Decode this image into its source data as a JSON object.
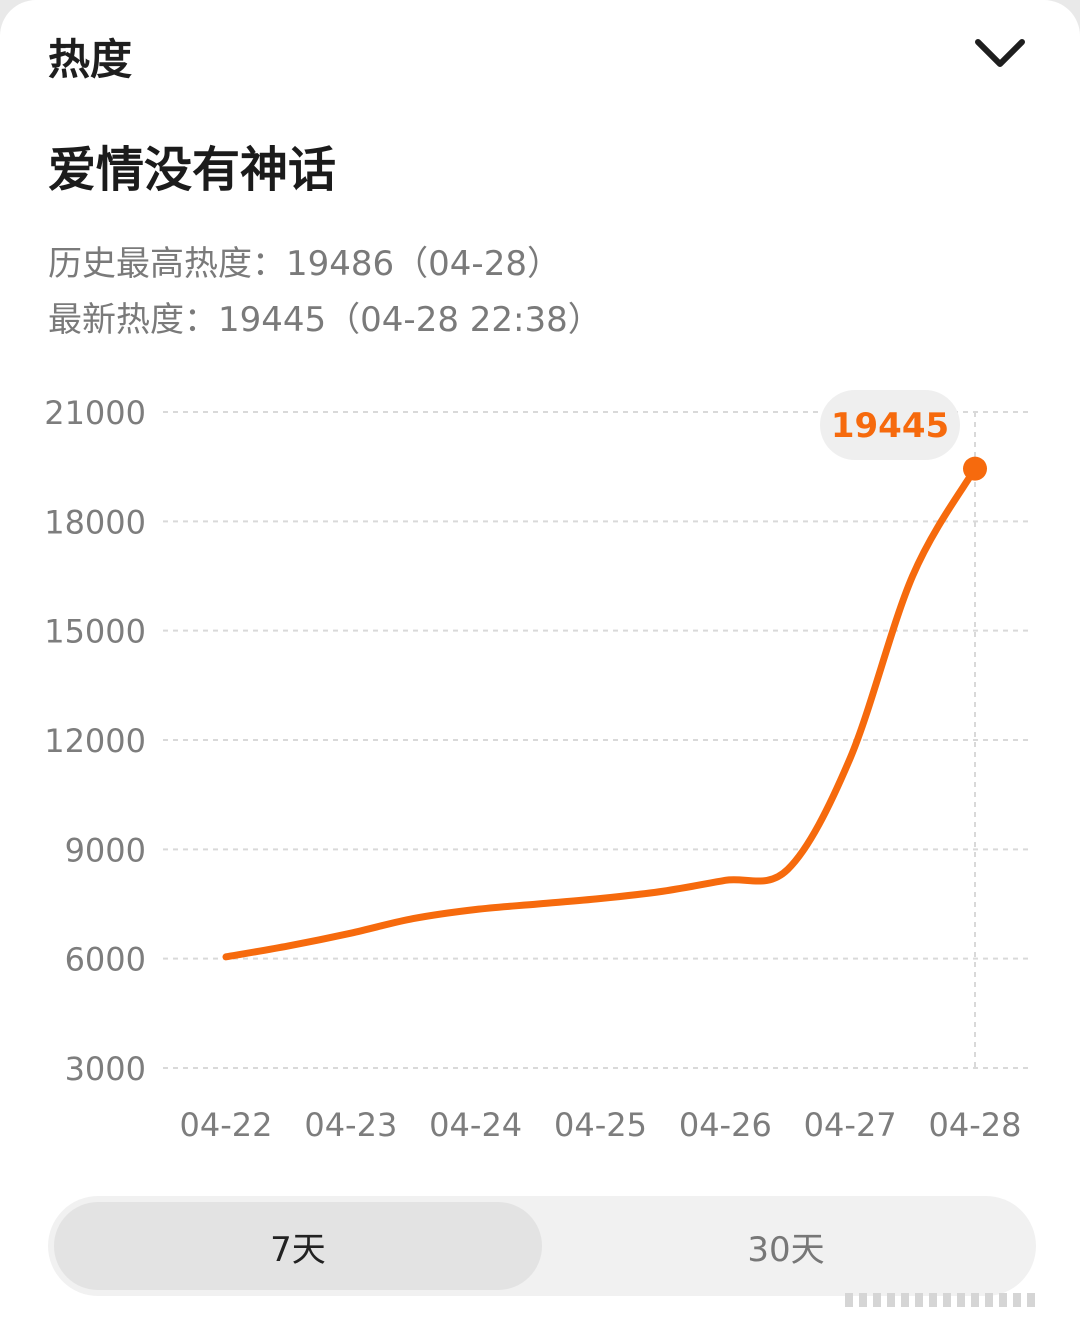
{
  "header": {
    "title": "热度",
    "collapse_icon": "chevron-down-icon"
  },
  "topic": {
    "title": "爱情没有神话"
  },
  "stats": {
    "peak": "历史最高热度：19486（04-28）",
    "latest": "最新热度：19445（04-28 22:38）"
  },
  "tabs": [
    {
      "label": "7天",
      "selected": true
    },
    {
      "label": "30天",
      "selected": false
    }
  ],
  "colors": {
    "accent": "#f66a0d",
    "tooltip_bg": "#efefef",
    "grid": "#d9d9d9",
    "axis_text": "#7d7d7d"
  },
  "chart_data": {
    "type": "line",
    "categories": [
      "04-22",
      "04-23",
      "04-24",
      "04-25",
      "04-26",
      "04-27",
      "04-28"
    ],
    "series": [
      {
        "x": [
          "04-22",
          "04-22.5",
          "04-23",
          "04-23.5",
          "04-24",
          "04-24.5",
          "04-25",
          "04-25.5",
          "04-26",
          "04-26.5",
          "04-27",
          "04-27.5",
          "04-28"
        ],
        "values": [
          6050,
          6350,
          6700,
          7100,
          7350,
          7500,
          7650,
          7850,
          8150,
          8450,
          11500,
          16500,
          19445
        ]
      }
    ],
    "highlight": {
      "category": "04-28",
      "value": 19445,
      "label": "19445"
    },
    "y_ticks": [
      3000,
      6000,
      9000,
      12000,
      15000,
      18000,
      21000
    ],
    "ylim": [
      3000,
      21000
    ],
    "grid": true,
    "legend": "none"
  }
}
